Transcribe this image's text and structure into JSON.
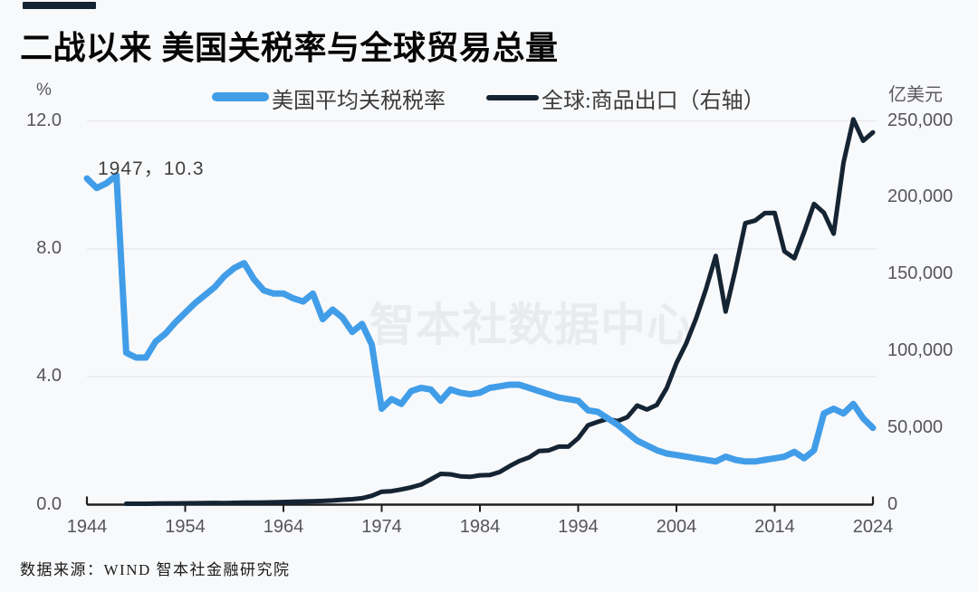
{
  "brand_bar_color": "#152433",
  "header": {
    "title": "二战以来 美国关税率与全球贸易总量"
  },
  "legend": [
    {
      "label": "美国平均关税税率",
      "color": "#419de8"
    },
    {
      "label": "全球:商品出口（右轴）",
      "color": "#152433"
    }
  ],
  "annotation": {
    "text": "1947，10.3"
  },
  "watermark": "智本社数据中心",
  "footer": {
    "source": "数据来源：WIND 智本社金融研究院"
  },
  "colors": {
    "background": "#f8f9fb",
    "tariff_line": "#419de8",
    "exports_line": "#152433",
    "gridline": "#e7e8ec",
    "axis": "#1f1f1f",
    "tick_text": "#565658"
  },
  "chart_data": {
    "type": "line",
    "title": "二战以来 美国关税率与全球贸易总量",
    "grid": "horizontal-only",
    "legend_position": "top",
    "x_axis": {
      "ticks": [
        1944,
        1954,
        1964,
        1974,
        1984,
        1994,
        2004,
        2014,
        2024
      ],
      "range": [
        1944,
        2024
      ]
    },
    "left_axis": {
      "unit": "%",
      "range": [
        0,
        12
      ],
      "ticks": [
        {
          "label": "12.0",
          "value": 12
        },
        {
          "label": "8.0",
          "value": 8
        },
        {
          "label": "4.0",
          "value": 4
        },
        {
          "label": "0.0",
          "value": 0
        }
      ],
      "gridline_values": [
        4,
        8,
        12
      ]
    },
    "right_axis": {
      "unit": "亿美元",
      "range": [
        0,
        250000
      ],
      "ticks": [
        {
          "label": "250,000",
          "value": 250000
        },
        {
          "label": "200,000",
          "value": 200000
        },
        {
          "label": "150,000",
          "value": 150000
        },
        {
          "label": "100,000",
          "value": 100000
        },
        {
          "label": "50,000",
          "value": 50000
        },
        {
          "label": "0",
          "value": 0
        }
      ]
    },
    "annotations": [
      {
        "x": 1947,
        "y": 10.3,
        "text": "1947，10.3"
      }
    ],
    "series": [
      {
        "name": "美国平均关税税率",
        "axis": "left",
        "color": "#419de8",
        "stroke_width": 7,
        "x_start": 1944,
        "values": [
          10.2,
          9.9,
          10.05,
          10.3,
          4.75,
          4.6,
          4.6,
          5.1,
          5.35,
          5.7,
          6.0,
          6.3,
          6.55,
          6.8,
          7.15,
          7.4,
          7.55,
          7.05,
          6.7,
          6.6,
          6.6,
          6.45,
          6.35,
          6.6,
          5.8,
          6.1,
          5.85,
          5.4,
          5.65,
          5.0,
          3.0,
          3.3,
          3.15,
          3.55,
          3.65,
          3.6,
          3.25,
          3.6,
          3.5,
          3.45,
          3.5,
          3.65,
          3.7,
          3.75,
          3.75,
          3.65,
          3.55,
          3.45,
          3.35,
          3.3,
          3.25,
          2.95,
          2.9,
          2.7,
          2.5,
          2.25,
          2.0,
          1.85,
          1.7,
          1.6,
          1.55,
          1.5,
          1.45,
          1.4,
          1.35,
          1.5,
          1.4,
          1.35,
          1.35,
          1.4,
          1.45,
          1.5,
          1.65,
          1.45,
          1.7,
          2.85,
          3.0,
          2.85,
          3.15,
          2.7,
          2.4
        ]
      },
      {
        "name": "全球:商品出口（右轴）",
        "axis": "right",
        "color": "#152433",
        "stroke_width": 5,
        "x_start": 1948,
        "values": [
          570,
          580,
          610,
          790,
          800,
          820,
          860,
          950,
          1040,
          1120,
          1080,
          1160,
          1300,
          1350,
          1420,
          1550,
          1730,
          1880,
          2050,
          2160,
          2400,
          2730,
          3170,
          3540,
          4200,
          5790,
          8420,
          8760,
          9910,
          11250,
          13010,
          16500,
          20030,
          19780,
          18480,
          18080,
          19110,
          19290,
          21200,
          24980,
          28400,
          30800,
          34900,
          35300,
          37800,
          37800,
          43260,
          51680,
          53940,
          55860,
          54400,
          57020,
          64560,
          61980,
          64920,
          75880,
          92200,
          105060,
          121310,
          140140,
          162000,
          125780,
          153000,
          183300,
          185000,
          189900,
          190030,
          165000,
          160500,
          177500,
          195900,
          190170,
          176450,
          222800,
          251000,
          237000,
          242500
        ]
      }
    ]
  }
}
